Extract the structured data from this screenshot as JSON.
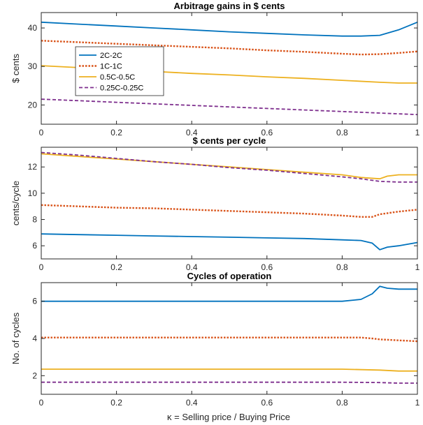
{
  "xlabel": "κ = Selling price / Buying Price",
  "legend": {
    "entries": [
      "2C-2C",
      "1C-1C",
      "0.5C-0.5C",
      "0.25C-0.25C"
    ]
  },
  "colors": {
    "2C-2C": "#0072bd",
    "1C-1C": "#d95319",
    "0.5C-0.5C": "#edb120",
    "0.25C-0.25C": "#7e2f8e"
  },
  "chart_data": [
    {
      "type": "line",
      "title": "Arbitrage gains in $ cents",
      "ylabel": "$ cents",
      "xlim": [
        0,
        1
      ],
      "ylim": [
        15,
        44
      ],
      "xticks": [
        0,
        0.2,
        0.4,
        0.6,
        0.8,
        1
      ],
      "yticks": [
        20,
        30,
        40
      ],
      "legend_position": "top-left",
      "series": [
        {
          "name": "2C-2C",
          "style": "solid",
          "x": [
            0,
            0.1,
            0.2,
            0.3,
            0.4,
            0.5,
            0.6,
            0.7,
            0.8,
            0.85,
            0.9,
            0.95,
            1.0
          ],
          "y": [
            41.5,
            41.0,
            40.5,
            40.0,
            39.5,
            39.0,
            38.6,
            38.2,
            37.9,
            37.9,
            38.1,
            39.5,
            41.5
          ]
        },
        {
          "name": "1C-1C",
          "style": "dotted",
          "x": [
            0,
            0.1,
            0.2,
            0.3,
            0.4,
            0.5,
            0.6,
            0.7,
            0.8,
            0.85,
            0.9,
            0.95,
            1.0
          ],
          "y": [
            36.7,
            36.3,
            35.9,
            35.5,
            35.1,
            34.7,
            34.2,
            33.8,
            33.3,
            33.1,
            33.2,
            33.5,
            33.9
          ]
        },
        {
          "name": "0.5C-0.5C",
          "style": "solid",
          "x": [
            0,
            0.1,
            0.2,
            0.3,
            0.4,
            0.5,
            0.6,
            0.7,
            0.8,
            0.9,
            0.95,
            1.0
          ],
          "y": [
            30.2,
            29.7,
            29.2,
            28.7,
            28.2,
            27.8,
            27.3,
            26.9,
            26.4,
            25.9,
            25.7,
            25.7
          ]
        },
        {
          "name": "0.25C-0.25C",
          "style": "dashed",
          "x": [
            0,
            0.1,
            0.2,
            0.3,
            0.4,
            0.5,
            0.6,
            0.7,
            0.8,
            0.9,
            1.0
          ],
          "y": [
            21.5,
            21.1,
            20.7,
            20.3,
            19.9,
            19.5,
            19.1,
            18.7,
            18.3,
            17.9,
            17.5
          ]
        }
      ]
    },
    {
      "type": "line",
      "title": "$ cents per cycle",
      "ylabel": "cents/cycle",
      "xlim": [
        0,
        1
      ],
      "ylim": [
        5,
        13.5
      ],
      "xticks": [
        0,
        0.2,
        0.4,
        0.6,
        0.8,
        1
      ],
      "yticks": [
        6,
        8,
        10,
        12
      ],
      "series": [
        {
          "name": "2C-2C",
          "style": "solid",
          "x": [
            0,
            0.1,
            0.2,
            0.3,
            0.4,
            0.5,
            0.6,
            0.7,
            0.8,
            0.85,
            0.88,
            0.9,
            0.92,
            0.95,
            1.0
          ],
          "y": [
            6.9,
            6.85,
            6.8,
            6.75,
            6.7,
            6.65,
            6.6,
            6.55,
            6.45,
            6.4,
            6.2,
            5.7,
            5.9,
            6.0,
            6.25
          ]
        },
        {
          "name": "1C-1C",
          "style": "dotted",
          "x": [
            0,
            0.1,
            0.2,
            0.3,
            0.4,
            0.5,
            0.6,
            0.7,
            0.8,
            0.85,
            0.88,
            0.9,
            0.95,
            1.0
          ],
          "y": [
            9.1,
            9.0,
            8.9,
            8.85,
            8.75,
            8.65,
            8.55,
            8.45,
            8.3,
            8.2,
            8.2,
            8.4,
            8.6,
            8.75
          ]
        },
        {
          "name": "0.5C-0.5C",
          "style": "solid",
          "x": [
            0,
            0.1,
            0.2,
            0.3,
            0.4,
            0.5,
            0.6,
            0.7,
            0.8,
            0.85,
            0.9,
            0.92,
            0.95,
            1.0
          ],
          "y": [
            13.0,
            12.8,
            12.6,
            12.4,
            12.2,
            12.0,
            11.8,
            11.6,
            11.4,
            11.2,
            11.1,
            11.3,
            11.4,
            11.4
          ]
        },
        {
          "name": "0.25C-0.25C",
          "style": "dashed",
          "x": [
            0,
            0.1,
            0.2,
            0.3,
            0.4,
            0.5,
            0.6,
            0.7,
            0.8,
            0.85,
            0.9,
            0.95,
            1.0
          ],
          "y": [
            13.1,
            12.9,
            12.65,
            12.4,
            12.2,
            11.95,
            11.75,
            11.5,
            11.25,
            11.1,
            10.9,
            10.85,
            10.85
          ]
        }
      ]
    },
    {
      "type": "line",
      "title": "Cycles of operation",
      "ylabel": "No. of cycles",
      "xlim": [
        0,
        1
      ],
      "ylim": [
        1,
        7
      ],
      "xticks": [
        0,
        0.2,
        0.4,
        0.6,
        0.8,
        1
      ],
      "yticks": [
        2,
        4,
        6
      ],
      "series": [
        {
          "name": "2C-2C",
          "style": "solid",
          "x": [
            0,
            0.2,
            0.4,
            0.6,
            0.8,
            0.85,
            0.88,
            0.9,
            0.92,
            0.95,
            1.0
          ],
          "y": [
            6.0,
            6.0,
            6.0,
            6.0,
            6.0,
            6.1,
            6.4,
            6.8,
            6.7,
            6.65,
            6.65
          ]
        },
        {
          "name": "1C-1C",
          "style": "dotted",
          "x": [
            0,
            0.2,
            0.4,
            0.6,
            0.8,
            0.85,
            0.88,
            0.9,
            0.95,
            1.0
          ],
          "y": [
            4.05,
            4.05,
            4.05,
            4.05,
            4.05,
            4.05,
            4.0,
            3.95,
            3.9,
            3.85
          ]
        },
        {
          "name": "0.5C-0.5C",
          "style": "solid",
          "x": [
            0,
            0.2,
            0.4,
            0.6,
            0.8,
            0.9,
            0.95,
            1.0
          ],
          "y": [
            2.35,
            2.35,
            2.35,
            2.35,
            2.35,
            2.3,
            2.25,
            2.25
          ]
        },
        {
          "name": "0.25C-0.25C",
          "style": "dashed",
          "x": [
            0,
            0.2,
            0.4,
            0.6,
            0.8,
            0.9,
            0.95,
            1.0
          ],
          "y": [
            1.65,
            1.65,
            1.65,
            1.65,
            1.65,
            1.63,
            1.6,
            1.6
          ]
        }
      ]
    }
  ]
}
